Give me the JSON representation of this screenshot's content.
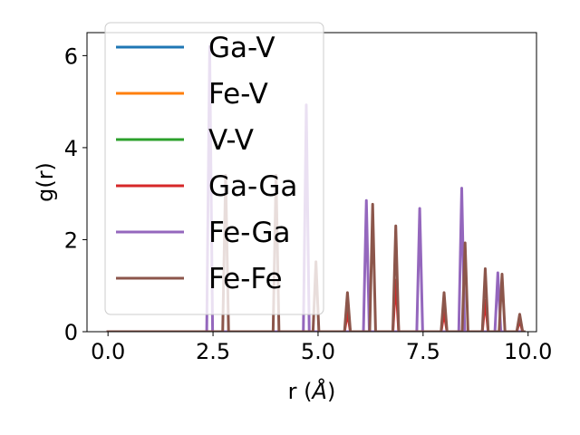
{
  "chart_data": {
    "type": "line",
    "title": "",
    "xlabel": "r (Å)",
    "xlabel_parts": [
      "r (",
      "Å",
      ")"
    ],
    "ylabel": "g(r)",
    "xlim": [
      -0.5,
      10.2
    ],
    "ylim": [
      0,
      6.5
    ],
    "xticks": [
      0.0,
      2.5,
      5.0,
      7.5,
      10.0
    ],
    "xtick_labels": [
      "0.0",
      "2.5",
      "5.0",
      "7.5",
      "10.0"
    ],
    "yticks": [
      0,
      2,
      4,
      6
    ],
    "ytick_labels": [
      "0",
      "2",
      "4",
      "6"
    ],
    "grid": false,
    "legend_position": "upper-left",
    "peak_half_width": 0.07,
    "series": [
      {
        "name": "Ga-V",
        "color": "#1f77b4",
        "peaks": []
      },
      {
        "name": "Fe-V",
        "color": "#ff7f0e",
        "peaks": []
      },
      {
        "name": "V-V",
        "color": "#2ca02c",
        "peaks": []
      },
      {
        "name": "Ga-Ga",
        "color": "#d62728",
        "peaks": [
          {
            "r": 5.7,
            "g": 0.42
          },
          {
            "r": 6.85,
            "g": 1.12
          },
          {
            "r": 8.0,
            "g": 0.42
          },
          {
            "r": 8.98,
            "g": 0.68
          },
          {
            "r": 9.8,
            "g": 0.25
          }
        ]
      },
      {
        "name": "Fe-Ga",
        "color": "#9467bd",
        "peaks": [
          {
            "r": 2.42,
            "g": 6.2
          },
          {
            "r": 4.72,
            "g": 4.93
          },
          {
            "r": 6.15,
            "g": 2.85
          },
          {
            "r": 7.42,
            "g": 2.68
          },
          {
            "r": 8.42,
            "g": 3.12
          },
          {
            "r": 9.28,
            "g": 1.28
          }
        ]
      },
      {
        "name": "Fe-Fe",
        "color": "#8c564b",
        "peaks": [
          {
            "r": 2.8,
            "g": 3.4
          },
          {
            "r": 4.0,
            "g": 3.4
          },
          {
            "r": 4.95,
            "g": 1.52
          },
          {
            "r": 5.7,
            "g": 0.85
          },
          {
            "r": 6.3,
            "g": 2.77
          },
          {
            "r": 6.85,
            "g": 2.3
          },
          {
            "r": 8.0,
            "g": 0.85
          },
          {
            "r": 8.5,
            "g": 1.93
          },
          {
            "r": 8.98,
            "g": 1.37
          },
          {
            "r": 9.38,
            "g": 1.25
          },
          {
            "r": 9.8,
            "g": 0.38
          }
        ]
      }
    ]
  }
}
